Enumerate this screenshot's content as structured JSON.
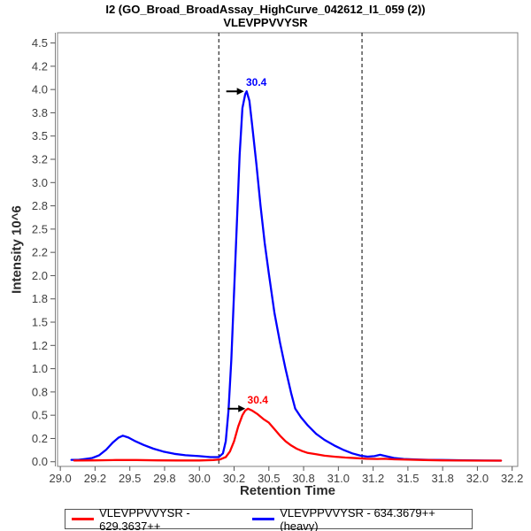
{
  "title": {
    "line1": "I2 (GO_Broad_BroadAssay_HighCurve_042612_I1_059 (2))",
    "line2": "VLEVPPVVYSR"
  },
  "legend": {
    "items": [
      {
        "label": "VLEVPPVVYSR - 629.3637++",
        "color": "#ff0000"
      },
      {
        "label": "VLEVPPVVYSR - 634.3679++ (heavy)",
        "color": "#0000ff"
      }
    ]
  },
  "chart_data": {
    "type": "line",
    "title": "I2 (GO_Broad_BroadAssay_HighCurve_042612_I1_059 (2)) / VLEVPPVVYSR",
    "xlabel": "Retention Time",
    "ylabel": "Intensity 10^6",
    "xlim": [
      28.98,
      32.29
    ],
    "ylim": [
      -0.05,
      4.61
    ],
    "grid": false,
    "legend_position": "bottom",
    "frame_color": "#808080",
    "tick_color": "#555555",
    "x_ticks": [
      {
        "value": 29.0,
        "label": "29.0"
      },
      {
        "value": 29.25,
        "label": "29.2"
      },
      {
        "value": 29.5,
        "label": "29.5"
      },
      {
        "value": 29.75,
        "label": "29.8"
      },
      {
        "value": 30.0,
        "label": "30.0"
      },
      {
        "value": 30.25,
        "label": "30.2"
      },
      {
        "value": 30.5,
        "label": "30.5"
      },
      {
        "value": 30.75,
        "label": "30.8"
      },
      {
        "value": 31.0,
        "label": "31.0"
      },
      {
        "value": 31.25,
        "label": "31.2"
      },
      {
        "value": 31.5,
        "label": "31.5"
      },
      {
        "value": 31.75,
        "label": "31.8"
      },
      {
        "value": 32.0,
        "label": "32.0"
      },
      {
        "value": 32.25,
        "label": "32.2"
      }
    ],
    "y_ticks": [
      {
        "value": 0.0,
        "label": "0.0"
      },
      {
        "value": 0.25,
        "label": "0.2"
      },
      {
        "value": 0.5,
        "label": "0.5"
      },
      {
        "value": 0.75,
        "label": "0.8"
      },
      {
        "value": 1.0,
        "label": "1.0"
      },
      {
        "value": 1.25,
        "label": "1.2"
      },
      {
        "value": 1.5,
        "label": "1.5"
      },
      {
        "value": 1.75,
        "label": "1.8"
      },
      {
        "value": 2.0,
        "label": "2.0"
      },
      {
        "value": 2.25,
        "label": "2.2"
      },
      {
        "value": 2.5,
        "label": "2.5"
      },
      {
        "value": 2.75,
        "label": "2.8"
      },
      {
        "value": 3.0,
        "label": "3.0"
      },
      {
        "value": 3.25,
        "label": "3.2"
      },
      {
        "value": 3.5,
        "label": "3.5"
      },
      {
        "value": 3.75,
        "label": "3.8"
      },
      {
        "value": 4.0,
        "label": "4.0"
      },
      {
        "value": 4.25,
        "label": "4.2"
      },
      {
        "value": 4.5,
        "label": "4.5"
      }
    ],
    "peak_boundaries": {
      "style": "dashed",
      "color": "#000000",
      "values": [
        30.14,
        31.17
      ]
    },
    "series": [
      {
        "name": "VLEVPPVVYSR - 629.3637++",
        "color": "#ff0000",
        "peak_label": "30.4",
        "peak_apex": {
          "t": 30.35,
          "v": 0.57
        },
        "points": [
          [
            29.1,
            0.013
          ],
          [
            29.25,
            0.015
          ],
          [
            29.4,
            0.018
          ],
          [
            29.55,
            0.018
          ],
          [
            29.7,
            0.015
          ],
          [
            29.85,
            0.014
          ],
          [
            30.0,
            0.014
          ],
          [
            30.1,
            0.018
          ],
          [
            30.15,
            0.025
          ],
          [
            30.19,
            0.05
          ],
          [
            30.22,
            0.11
          ],
          [
            30.25,
            0.22
          ],
          [
            30.28,
            0.38
          ],
          [
            30.31,
            0.5
          ],
          [
            30.33,
            0.55
          ],
          [
            30.35,
            0.57
          ],
          [
            30.38,
            0.55
          ],
          [
            30.42,
            0.51
          ],
          [
            30.46,
            0.46
          ],
          [
            30.5,
            0.42
          ],
          [
            30.54,
            0.35
          ],
          [
            30.58,
            0.28
          ],
          [
            30.62,
            0.22
          ],
          [
            30.66,
            0.175
          ],
          [
            30.7,
            0.14
          ],
          [
            30.74,
            0.115
          ],
          [
            30.78,
            0.095
          ],
          [
            30.84,
            0.08
          ],
          [
            30.9,
            0.065
          ],
          [
            30.97,
            0.055
          ],
          [
            31.05,
            0.045
          ],
          [
            31.13,
            0.038
          ],
          [
            31.2,
            0.032
          ],
          [
            31.28,
            0.03
          ],
          [
            31.33,
            0.032
          ],
          [
            31.4,
            0.026
          ],
          [
            31.5,
            0.022
          ],
          [
            31.62,
            0.018
          ],
          [
            31.75,
            0.015
          ],
          [
            31.9,
            0.013
          ],
          [
            32.05,
            0.012
          ],
          [
            32.17,
            0.012
          ]
        ]
      },
      {
        "name": "VLEVPPVVYSR - 634.3679++ (heavy)",
        "color": "#0000ff",
        "peak_label": "30.4",
        "peak_apex": {
          "t": 30.34,
          "v": 3.98
        },
        "points": [
          [
            29.08,
            0.02
          ],
          [
            29.13,
            0.02
          ],
          [
            29.18,
            0.03
          ],
          [
            29.23,
            0.04
          ],
          [
            29.28,
            0.07
          ],
          [
            29.33,
            0.13
          ],
          [
            29.38,
            0.21
          ],
          [
            29.42,
            0.26
          ],
          [
            29.45,
            0.28
          ],
          [
            29.49,
            0.26
          ],
          [
            29.54,
            0.22
          ],
          [
            29.6,
            0.18
          ],
          [
            29.67,
            0.14
          ],
          [
            29.74,
            0.11
          ],
          [
            29.82,
            0.085
          ],
          [
            29.9,
            0.07
          ],
          [
            30.0,
            0.06
          ],
          [
            30.08,
            0.05
          ],
          [
            30.14,
            0.05
          ],
          [
            30.17,
            0.09
          ],
          [
            30.19,
            0.22
          ],
          [
            30.21,
            0.55
          ],
          [
            30.23,
            1.1
          ],
          [
            30.26,
            2.2
          ],
          [
            30.29,
            3.3
          ],
          [
            30.31,
            3.8
          ],
          [
            30.33,
            3.95
          ],
          [
            30.34,
            3.98
          ],
          [
            30.36,
            3.88
          ],
          [
            30.38,
            3.62
          ],
          [
            30.41,
            3.2
          ],
          [
            30.44,
            2.75
          ],
          [
            30.47,
            2.35
          ],
          [
            30.5,
            2.02
          ],
          [
            30.54,
            1.6
          ],
          [
            30.58,
            1.28
          ],
          [
            30.62,
            1.0
          ],
          [
            30.66,
            0.74
          ],
          [
            30.69,
            0.57
          ],
          [
            30.73,
            0.48
          ],
          [
            30.78,
            0.39
          ],
          [
            30.84,
            0.3
          ],
          [
            30.9,
            0.235
          ],
          [
            30.97,
            0.175
          ],
          [
            31.04,
            0.125
          ],
          [
            31.1,
            0.09
          ],
          [
            31.16,
            0.065
          ],
          [
            31.21,
            0.055
          ],
          [
            31.26,
            0.06
          ],
          [
            31.3,
            0.075
          ],
          [
            31.34,
            0.06
          ],
          [
            31.4,
            0.04
          ],
          [
            31.47,
            0.03
          ],
          [
            31.55,
            0.025
          ],
          [
            31.65,
            0.02
          ],
          [
            31.75,
            0.018
          ],
          [
            31.9,
            0.015
          ],
          [
            32.05,
            0.013
          ],
          [
            32.17,
            0.012
          ]
        ]
      }
    ]
  }
}
